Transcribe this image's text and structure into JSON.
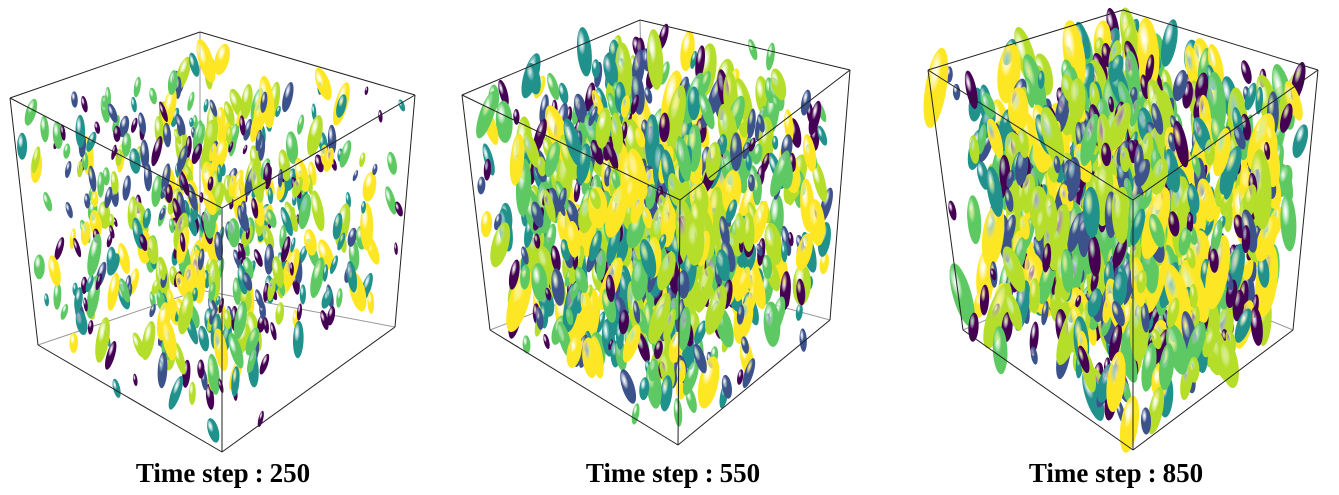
{
  "panels": [
    {
      "caption_label": "Time step",
      "caption_sep": ":",
      "caption_value": "250",
      "density": 0.55,
      "size": 0.55
    },
    {
      "caption_label": "Time step",
      "caption_sep": ":",
      "caption_value": "550",
      "density": 0.85,
      "size": 0.85
    },
    {
      "caption_label": "Time step",
      "caption_sep": ":",
      "caption_value": "850",
      "density": 1.0,
      "size": 1.0
    }
  ],
  "colormap": [
    "#440154",
    "#3b528b",
    "#21918c",
    "#5ec962",
    "#b5de2b",
    "#fde725"
  ]
}
